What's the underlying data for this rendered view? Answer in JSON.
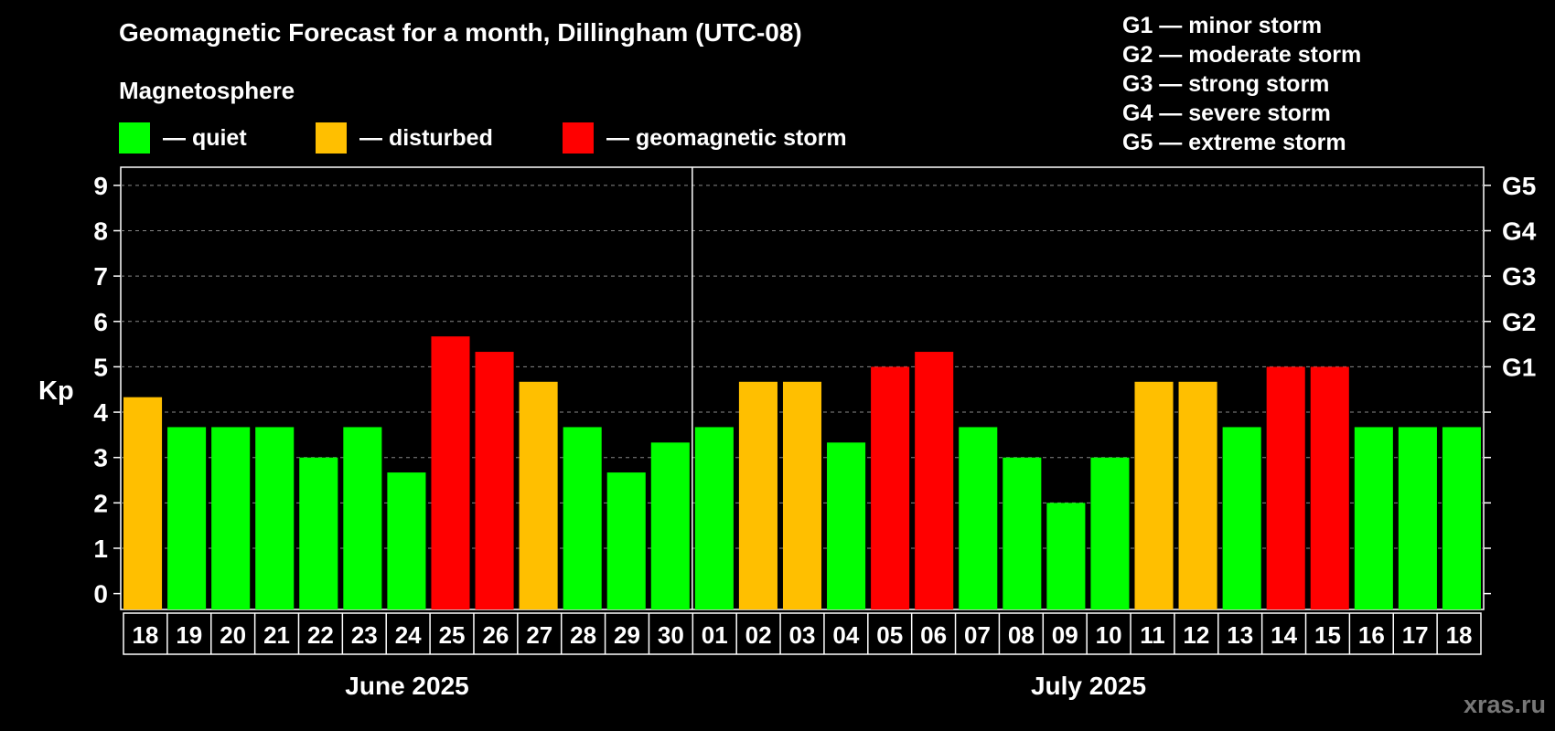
{
  "title": "Geomagnetic Forecast for a month, Dillingham (UTC-08)",
  "legend": {
    "heading": "Magnetosphere",
    "items": [
      {
        "label": "— quiet",
        "color": "#00ff00"
      },
      {
        "label": "— disturbed",
        "color": "#ffbf00"
      },
      {
        "label": "— geomagnetic storm",
        "color": "#ff0000"
      }
    ]
  },
  "storm_levels": [
    "G1 — minor storm",
    "G2 — moderate storm",
    "G3 — strong storm",
    "G4 — severe storm",
    "G5 — extreme storm"
  ],
  "months": [
    "June 2025",
    "July 2025"
  ],
  "watermark": "xras.ru",
  "chart_data": {
    "type": "bar",
    "ylabel": "Kp",
    "ylim": [
      0,
      9
    ],
    "yticks": [
      "0",
      "1",
      "2",
      "3",
      "4",
      "5",
      "6",
      "7",
      "8",
      "9"
    ],
    "right_axis": [
      {
        "kp": 5,
        "label": "G1"
      },
      {
        "kp": 6,
        "label": "G2"
      },
      {
        "kp": 7,
        "label": "G3"
      },
      {
        "kp": 8,
        "label": "G4"
      },
      {
        "kp": 9,
        "label": "G5"
      }
    ],
    "grid": true,
    "categories": [
      "18",
      "19",
      "20",
      "21",
      "22",
      "23",
      "24",
      "25",
      "26",
      "27",
      "28",
      "29",
      "30",
      "01",
      "02",
      "03",
      "04",
      "05",
      "06",
      "07",
      "08",
      "09",
      "10",
      "11",
      "12",
      "13",
      "14",
      "15",
      "16",
      "17",
      "18"
    ],
    "values": [
      4.33,
      3.67,
      3.67,
      3.67,
      3.0,
      3.67,
      2.67,
      5.67,
      5.33,
      4.67,
      3.67,
      2.67,
      3.33,
      3.67,
      4.67,
      4.67,
      3.33,
      5.0,
      5.33,
      3.67,
      3.0,
      2.0,
      3.0,
      4.67,
      4.67,
      3.67,
      5.0,
      5.0,
      3.67,
      3.67,
      3.67
    ],
    "status": [
      "disturbed",
      "quiet",
      "quiet",
      "quiet",
      "quiet",
      "quiet",
      "quiet",
      "storm",
      "storm",
      "disturbed",
      "quiet",
      "quiet",
      "quiet",
      "quiet",
      "disturbed",
      "disturbed",
      "quiet",
      "storm",
      "storm",
      "quiet",
      "quiet",
      "quiet",
      "quiet",
      "disturbed",
      "disturbed",
      "quiet",
      "storm",
      "storm",
      "quiet",
      "quiet",
      "quiet"
    ],
    "colors": {
      "quiet": "#00ff00",
      "disturbed": "#ffbf00",
      "storm": "#ff0000"
    },
    "month_groups": [
      {
        "name": "June 2025",
        "count": 13
      },
      {
        "name": "July 2025",
        "count": 18
      }
    ]
  }
}
